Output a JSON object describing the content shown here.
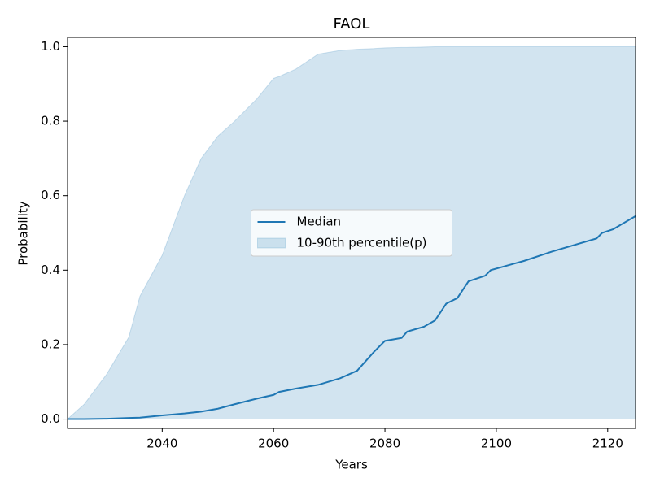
{
  "chart_data": {
    "type": "line",
    "title": "FAOL",
    "x_label": "Years",
    "y_label": "Probability",
    "x": [
      2023,
      2026,
      2030,
      2034,
      2036,
      2040,
      2044,
      2047,
      2050,
      2053,
      2057,
      2060,
      2061,
      2064,
      2068,
      2072,
      2075,
      2078,
      2080,
      2083,
      2084,
      2087,
      2089,
      2091,
      2093,
      2095,
      2098,
      2099,
      2105,
      2110,
      2118,
      2119,
      2121,
      2125
    ],
    "series": [
      {
        "name": "Median",
        "color": "#1f77b4",
        "values": [
          0,
          0,
          0.001,
          0.003,
          0.004,
          0.01,
          0.015,
          0.02,
          0.028,
          0.04,
          0.055,
          0.065,
          0.073,
          0.082,
          0.092,
          0.11,
          0.13,
          0.18,
          0.21,
          0.218,
          0.235,
          0.248,
          0.265,
          0.31,
          0.325,
          0.37,
          0.385,
          0.4,
          0.425,
          0.45,
          0.485,
          0.5,
          0.51,
          0.545
        ]
      },
      {
        "name": "10-90th percentile(p)",
        "color": "#1f77b4",
        "lower": [
          0,
          0,
          0,
          0,
          0,
          0,
          0,
          0,
          0,
          0,
          0,
          0,
          0,
          0,
          0,
          0,
          0,
          0,
          0,
          0,
          0,
          0,
          0,
          0,
          0,
          0,
          0,
          0,
          0,
          0,
          0,
          0,
          0,
          0
        ],
        "upper": [
          0,
          0.04,
          0.12,
          0.22,
          0.33,
          0.44,
          0.6,
          0.7,
          0.76,
          0.8,
          0.86,
          0.915,
          0.92,
          0.94,
          0.98,
          0.99,
          0.993,
          0.995,
          0.997,
          0.998,
          0.998,
          0.999,
          1,
          1,
          1,
          1,
          1,
          1,
          1,
          1,
          1,
          1,
          1,
          1
        ]
      }
    ],
    "xlim": [
      2023,
      2125
    ],
    "ylim": [
      -0.025,
      1.025
    ],
    "xticks": [
      2040,
      2060,
      2080,
      2100,
      2120
    ],
    "yticks": [
      {
        "value": 0,
        "label": "0.0"
      },
      {
        "value": 0.2,
        "label": "0.2"
      },
      {
        "value": 0.4,
        "label": "0.4"
      },
      {
        "value": 0.6,
        "label": "0.6"
      },
      {
        "value": 0.8,
        "label": "0.8"
      },
      {
        "value": 1,
        "label": "1.0"
      }
    ],
    "legend": "center"
  }
}
